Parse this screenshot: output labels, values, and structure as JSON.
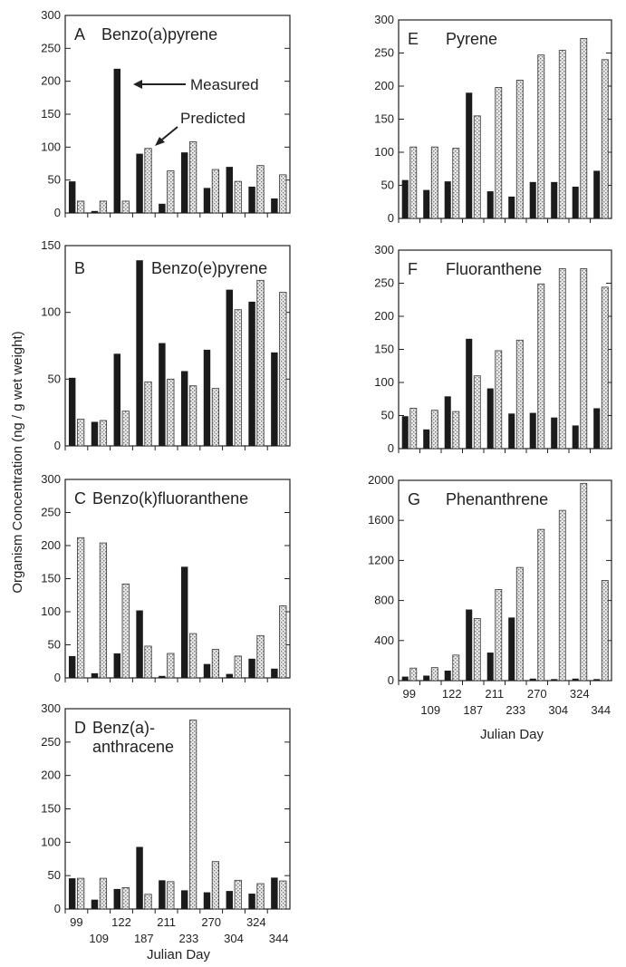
{
  "figure": {
    "ylabel": "Organism Concentration (ng / g wet weight)",
    "xlabel_left": "Julian Day",
    "xlabel_right": "Julian Day",
    "annotation_measured": "Measured",
    "annotation_predicted": "Predicted"
  },
  "chart_data": [
    {
      "type": "bar",
      "letter": "A",
      "title": "Benzo(a)pyrene",
      "ylim": [
        0,
        300
      ],
      "yticks": [
        0,
        50,
        100,
        150,
        200,
        250,
        300
      ],
      "series": [
        {
          "name": "Measured",
          "values": [
            48,
            3,
            219,
            90,
            14,
            92,
            38,
            70,
            40,
            22
          ]
        },
        {
          "name": "Predicted",
          "values": [
            18,
            18,
            18,
            98,
            64,
            108,
            66,
            48,
            72,
            58
          ]
        }
      ]
    },
    {
      "type": "bar",
      "letter": "B",
      "title": "Benzo(e)pyrene",
      "ylim": [
        0,
        150
      ],
      "yticks": [
        0,
        50,
        100,
        150
      ],
      "series": [
        {
          "name": "Measured",
          "values": [
            51,
            18,
            69,
            139,
            77,
            56,
            72,
            117,
            108,
            70
          ]
        },
        {
          "name": "Predicted",
          "values": [
            20,
            19,
            26,
            48,
            50,
            45,
            43,
            102,
            124,
            115
          ]
        }
      ]
    },
    {
      "type": "bar",
      "letter": "C",
      "title": "Benzo(k)fluoranthene",
      "ylim": [
        0,
        300
      ],
      "yticks": [
        0,
        50,
        100,
        150,
        200,
        250,
        300
      ],
      "series": [
        {
          "name": "Measured",
          "values": [
            33,
            7,
            37,
            102,
            3,
            168,
            21,
            6,
            29,
            14
          ]
        },
        {
          "name": "Predicted",
          "values": [
            212,
            204,
            142,
            48,
            37,
            67,
            43,
            33,
            64,
            109
          ]
        }
      ]
    },
    {
      "type": "bar",
      "letter": "D",
      "title": "Benz(a)-",
      "title2": "anthracene",
      "ylim": [
        0,
        300
      ],
      "yticks": [
        0,
        50,
        100,
        150,
        200,
        250,
        300
      ],
      "categories_row1": [
        "99",
        "122",
        "211",
        "270",
        "324"
      ],
      "categories_row2": [
        "109",
        "187",
        "233",
        "304",
        "344"
      ],
      "series": [
        {
          "name": "Measured",
          "values": [
            46,
            14,
            30,
            93,
            43,
            28,
            25,
            27,
            23,
            47
          ]
        },
        {
          "name": "Predicted",
          "values": [
            46,
            46,
            32,
            22,
            41,
            283,
            71,
            43,
            38,
            42
          ]
        }
      ]
    },
    {
      "type": "bar",
      "letter": "E",
      "title": "Pyrene",
      "ylim": [
        0,
        300
      ],
      "yticks": [
        0,
        50,
        100,
        150,
        200,
        250,
        300
      ],
      "series": [
        {
          "name": "Measured",
          "values": [
            58,
            43,
            56,
            190,
            41,
            33,
            55,
            55,
            48,
            72
          ]
        },
        {
          "name": "Predicted",
          "values": [
            108,
            108,
            106,
            155,
            198,
            209,
            247,
            254,
            272,
            240
          ]
        }
      ]
    },
    {
      "type": "bar",
      "letter": "F",
      "title": "Fluoranthene",
      "ylim": [
        0,
        300
      ],
      "yticks": [
        0,
        50,
        100,
        150,
        200,
        250,
        300
      ],
      "series": [
        {
          "name": "Measured",
          "values": [
            49,
            29,
            79,
            166,
            91,
            53,
            54,
            47,
            35,
            61
          ]
        },
        {
          "name": "Predicted",
          "values": [
            61,
            58,
            56,
            110,
            148,
            164,
            249,
            272,
            272,
            244
          ]
        }
      ]
    },
    {
      "type": "bar",
      "letter": "G",
      "title": "Phenanthrene",
      "ylim": [
        0,
        2000
      ],
      "yticks": [
        0,
        400,
        800,
        1200,
        1600,
        2000
      ],
      "categories_row1": [
        "99",
        "122",
        "211",
        "270",
        "324"
      ],
      "categories_row2": [
        "109",
        "187",
        "233",
        "304",
        "344"
      ],
      "series": [
        {
          "name": "Measured",
          "values": [
            40,
            50,
            100,
            710,
            280,
            630,
            20,
            15,
            20,
            15
          ]
        },
        {
          "name": "Predicted",
          "values": [
            125,
            130,
            255,
            620,
            910,
            1130,
            1510,
            1700,
            1970,
            1000
          ]
        }
      ]
    }
  ]
}
